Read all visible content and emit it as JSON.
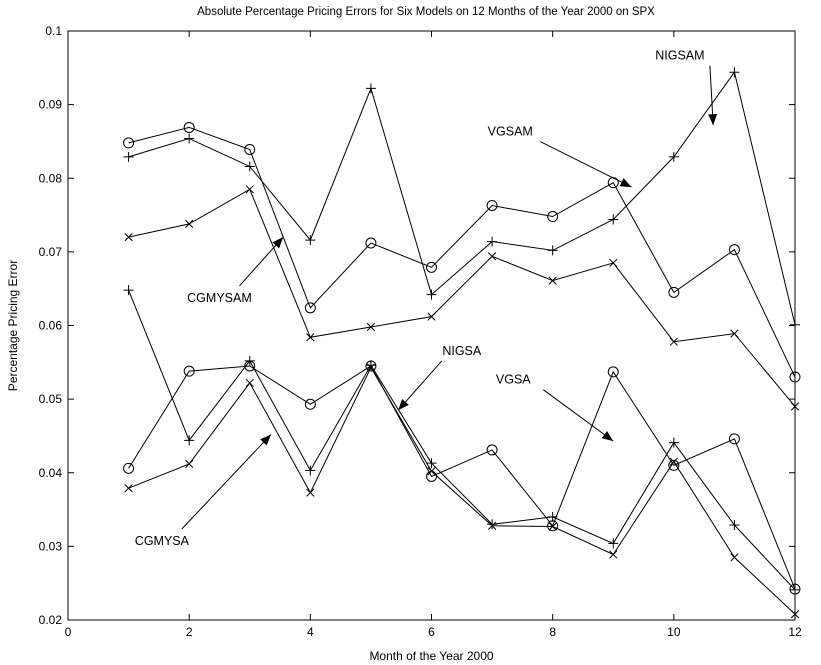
{
  "chart_data": {
    "type": "line",
    "title": "Absolute Percentage Pricing Errors for Six Models on 12 Months of the Year 2000 on SPX",
    "xlabel": "Month of the Year 2000",
    "ylabel": "Percentage Pricing Error",
    "xlim": [
      0,
      12
    ],
    "ylim": [
      0.02,
      0.1
    ],
    "xticks": [
      0,
      2,
      4,
      6,
      8,
      10,
      12
    ],
    "yticks": [
      0.02,
      0.03,
      0.04,
      0.05,
      0.06,
      0.07,
      0.08,
      0.09,
      0.1
    ],
    "xtick_labels": [
      "0",
      "2",
      "4",
      "6",
      "8",
      "10",
      "12"
    ],
    "ytick_labels": [
      "0.02",
      "0.03",
      "0.04",
      "0.05",
      "0.06",
      "0.07",
      "0.08",
      "0.09",
      "0.1"
    ],
    "grid": false,
    "x": [
      1,
      2,
      3,
      4,
      5,
      6,
      7,
      8,
      9,
      10,
      11,
      12
    ],
    "series": [
      {
        "marker": "circle",
        "values": [
          0.0848,
          0.0869,
          0.0839,
          0.0624,
          0.0712,
          0.0679,
          0.0763,
          0.0748,
          0.0794,
          0.0645,
          0.0703,
          0.053
        ]
      },
      {
        "marker": "plus",
        "values": [
          0.0829,
          0.0854,
          0.0816,
          0.0716,
          0.0922,
          0.0642,
          0.0714,
          0.0702,
          0.0744,
          0.0829,
          0.0944,
          0.0601
        ]
      },
      {
        "marker": "x",
        "values": [
          0.072,
          0.0738,
          0.0785,
          0.0584,
          0.0598,
          0.0612,
          0.0694,
          0.0661,
          0.0685,
          0.0578,
          0.0589,
          0.049
        ]
      },
      {
        "marker": "circle",
        "values": [
          0.0406,
          0.0538,
          0.0545,
          0.0493,
          0.0545,
          0.0395,
          0.0431,
          0.0328,
          0.0537,
          0.041,
          0.0446,
          0.0242
        ]
      },
      {
        "marker": "plus",
        "values": [
          0.0648,
          0.0444,
          0.0552,
          0.0403,
          0.0546,
          0.0413,
          0.033,
          0.034,
          0.0304,
          0.0441,
          0.0329,
          0.0241
        ]
      },
      {
        "marker": "x",
        "values": [
          0.0379,
          0.0412,
          0.0522,
          0.0373,
          0.0543,
          0.0402,
          0.0328,
          0.0327,
          0.0289,
          0.0415,
          0.0285,
          0.0208
        ]
      }
    ],
    "annotations": [
      {
        "text": "NIGSAM",
        "x": 10.1,
        "y": 0.0961,
        "arrow_to": [
          10.65,
          0.0872
        ]
      },
      {
        "text": "VGSAM",
        "x": 7.3,
        "y": 0.0858,
        "arrow_to": [
          9.3,
          0.0788
        ]
      },
      {
        "text": "CGMYSAM",
        "x": 2.5,
        "y": 0.0632,
        "arrow_to": [
          3.55,
          0.072
        ]
      },
      {
        "text": "NIGSA",
        "x": 6.5,
        "y": 0.056,
        "arrow_to": [
          5.45,
          0.0485
        ]
      },
      {
        "text": "VGSA",
        "x": 7.35,
        "y": 0.0521,
        "arrow_to": [
          9.0,
          0.0443
        ]
      },
      {
        "text": "CGMYSA",
        "x": 1.55,
        "y": 0.0302,
        "arrow_to": [
          3.35,
          0.0452
        ]
      }
    ]
  }
}
